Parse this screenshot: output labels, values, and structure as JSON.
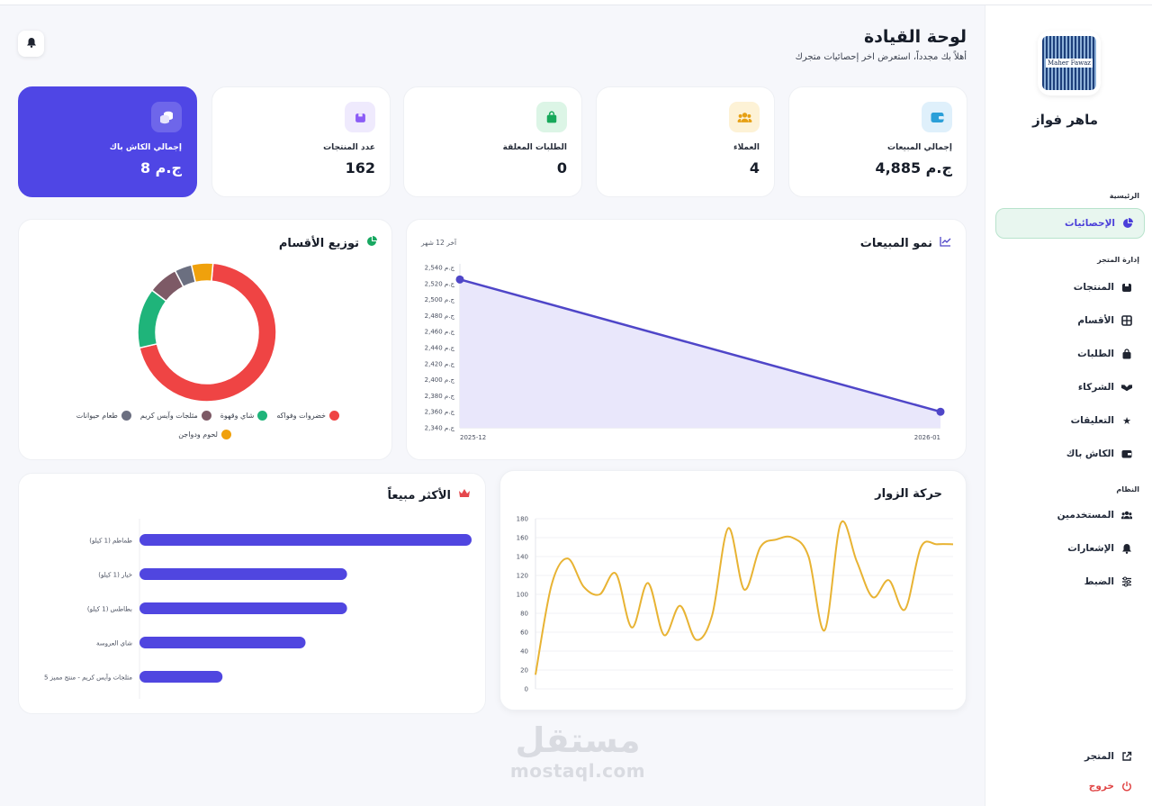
{
  "sidebar": {
    "store_name": "ماهر فواز",
    "logo_text": "Maher Fawaz",
    "sections": {
      "main": "الرئيسية",
      "store": "إدارة المتجر",
      "system": "النظام"
    },
    "items": [
      {
        "label": "الإحصائيات",
        "icon": "pie-chart-icon"
      },
      {
        "label": "المنتجات",
        "icon": "box-icon"
      },
      {
        "label": "الأقسام",
        "icon": "grid-icon"
      },
      {
        "label": "الطلبات",
        "icon": "bag-icon"
      },
      {
        "label": "الشركاء",
        "icon": "handshake-icon"
      },
      {
        "label": "التعليقات",
        "icon": "star-icon"
      },
      {
        "label": "الكاش باك",
        "icon": "wallet-icon"
      },
      {
        "label": "المستخدمين",
        "icon": "users-icon"
      },
      {
        "label": "الإشعارات",
        "icon": "bell-icon"
      },
      {
        "label": "الضبط",
        "icon": "sliders-icon"
      }
    ],
    "store_link": "المتجر",
    "logout": "خروج"
  },
  "header": {
    "title": "لوحة القيادة",
    "subtitle": "أهلاً بك مجدداً، استعرض اخر إحصائيات متجرك"
  },
  "stats": [
    {
      "label": "إجمالي المبيعات",
      "value": "4,885 ج.م",
      "icon": "wallet-icon",
      "color": "#dff0fb",
      "icon_color": "#2b9fd8"
    },
    {
      "label": "العملاء",
      "value": "4",
      "icon": "users-icon",
      "color": "#fdf2d6",
      "icon_color": "#e6a014"
    },
    {
      "label": "الطلبات المعلقة",
      "value": "0",
      "icon": "bag-icon",
      "color": "#dcf5e6",
      "icon_color": "#17a85a"
    },
    {
      "label": "عدد المنتجات",
      "value": "162",
      "icon": "box-icon",
      "color": "#efeafd",
      "icon_color": "#8b5cf6"
    },
    {
      "label": "إجمالي الكاش باك",
      "value": "8 ج.م",
      "icon": "coins-icon",
      "color": "#6e66ea",
      "icon_color": "#ffffff"
    }
  ],
  "sales_chart": {
    "title": "نمو المبيعات",
    "period": "آخر 12 شهر",
    "chart_data": {
      "type": "area",
      "x": [
        "2025-12",
        "2026-01"
      ],
      "values": [
        2525,
        2360
      ],
      "y_ticks": [
        "2,540 ج.م",
        "2,520 ج.م",
        "2,500 ج.م",
        "2,480 ج.م",
        "2,460 ج.م",
        "2,440 ج.م",
        "2,420 ج.م",
        "2,400 ج.م",
        "2,380 ج.م",
        "2,360 ج.م",
        "2,340 ج.م"
      ],
      "ylim": [
        2340,
        2540
      ],
      "color": "#4f46c8"
    }
  },
  "category_chart": {
    "title": "توزيع الأقسام",
    "chart_data": {
      "type": "pie",
      "labels": [
        "خضروات وفواكه",
        "شاي وقهوة",
        "مثلجات وآيس كريم",
        "طعام حيوانات",
        "لحوم ودواجن"
      ],
      "values": [
        70,
        14,
        7,
        4,
        5
      ],
      "colors": [
        "#ef4444",
        "#1fb47a",
        "#7d5a66",
        "#6b6f80",
        "#f0a10c"
      ]
    }
  },
  "visitors_chart": {
    "title": "حركة الزوار",
    "chart_data": {
      "type": "line",
      "values": [
        15,
        110,
        138,
        108,
        100,
        122,
        65,
        112,
        57,
        88,
        52,
        78,
        170,
        105,
        150,
        158,
        160,
        140,
        62,
        175,
        135,
        97,
        115,
        84,
        150,
        153,
        153
      ],
      "y_ticks": [
        "180",
        "160",
        "140",
        "120",
        "100",
        "80",
        "60",
        "40",
        "20",
        "0"
      ],
      "ylim": [
        0,
        180
      ],
      "color": "#e8b333"
    }
  },
  "top_selling": {
    "title": "الأكثر مبيعاً",
    "chart_data": {
      "type": "bar",
      "categories": [
        "طماطم (1 كيلو)",
        "خيار (1 كيلو)",
        "بطاطس (1 كيلو)",
        "شاي العروسة",
        "مثلجات وآيس كريم - منتج مميز 5"
      ],
      "values": [
        100,
        62.5,
        62.5,
        50,
        25
      ],
      "color": "#5046e0"
    }
  },
  "watermark": {
    "arabic": "مستقل",
    "latin": "mostaql.com"
  }
}
